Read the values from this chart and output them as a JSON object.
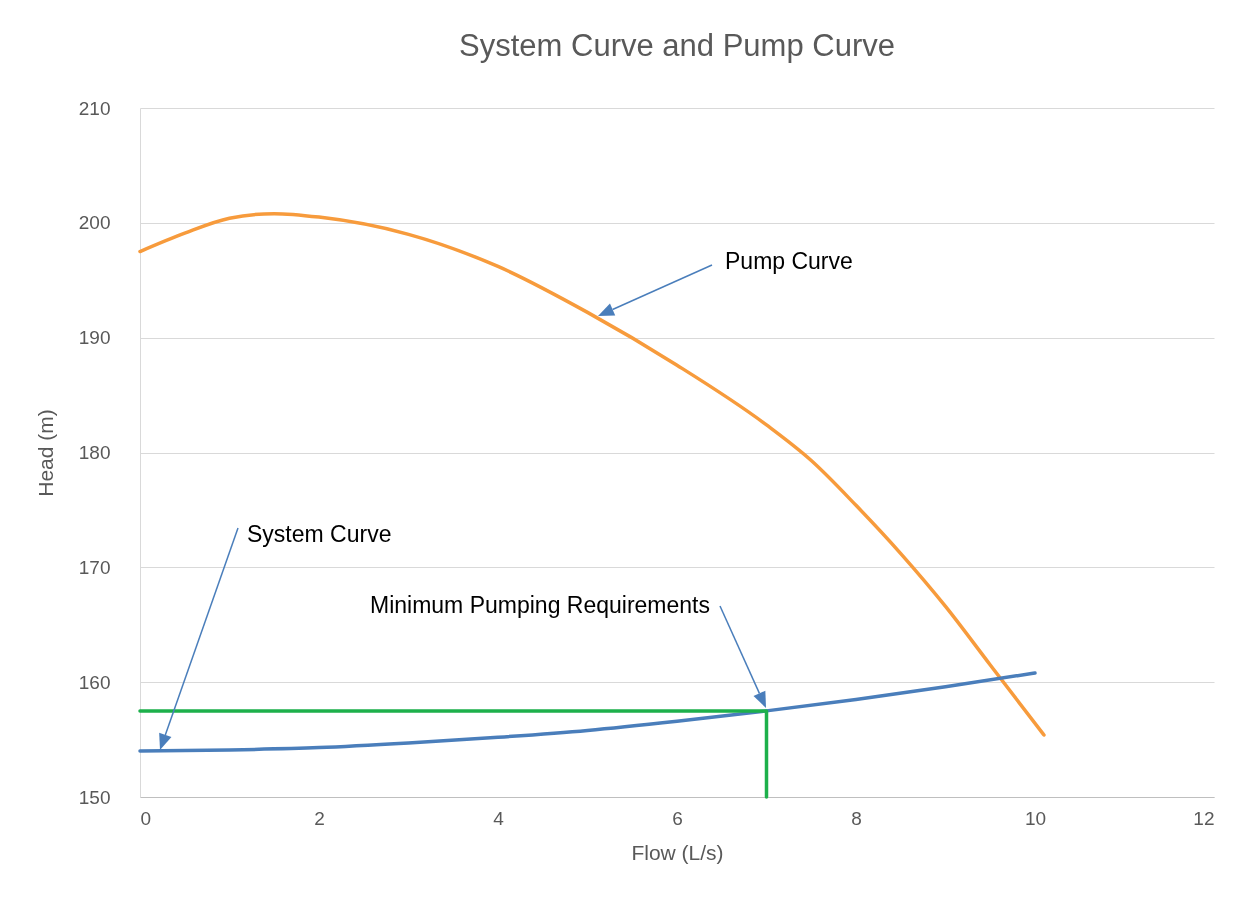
{
  "chart_data": {
    "type": "line",
    "title": "System Curve and Pump Curve",
    "xlabel": "Flow (L/s)",
    "ylabel": "Head (m)",
    "xlim": [
      0,
      12
    ],
    "xticks": [
      0,
      2,
      4,
      6,
      8,
      10,
      12
    ],
    "ylim": [
      150,
      210
    ],
    "yticks": [
      150,
      160,
      170,
      180,
      190,
      200,
      210
    ],
    "grid": "y",
    "series": [
      {
        "color": "#f79b3c",
        "x": [
          0,
          0.5,
          1,
          1.5,
          2,
          3,
          4,
          5,
          6,
          7,
          7.5,
          8,
          8.5,
          9,
          9.5,
          10.1
        ],
        "values": [
          197.5,
          199.1,
          200.4,
          200.8,
          200.5,
          199,
          196.2,
          192.2,
          187.6,
          182.4,
          179.3,
          175.4,
          171.2,
          166.6,
          161.5,
          155.4
        ]
      },
      {
        "color": "#4a7ebb",
        "x": [
          0,
          1,
          2,
          3,
          4,
          5,
          6,
          7,
          8,
          9,
          10
        ],
        "values": [
          154,
          154.1,
          154.3,
          154.7,
          155.2,
          155.8,
          156.6,
          157.5,
          158.5,
          159.6,
          160.8
        ]
      },
      {
        "color": "#1db04b",
        "x": [
          0,
          7,
          7
        ],
        "values": [
          157.5,
          157.5,
          150
        ]
      }
    ],
    "annotations": [
      "Pump Curve",
      "System Curve",
      "Minimum Pumping Requirements"
    ]
  }
}
